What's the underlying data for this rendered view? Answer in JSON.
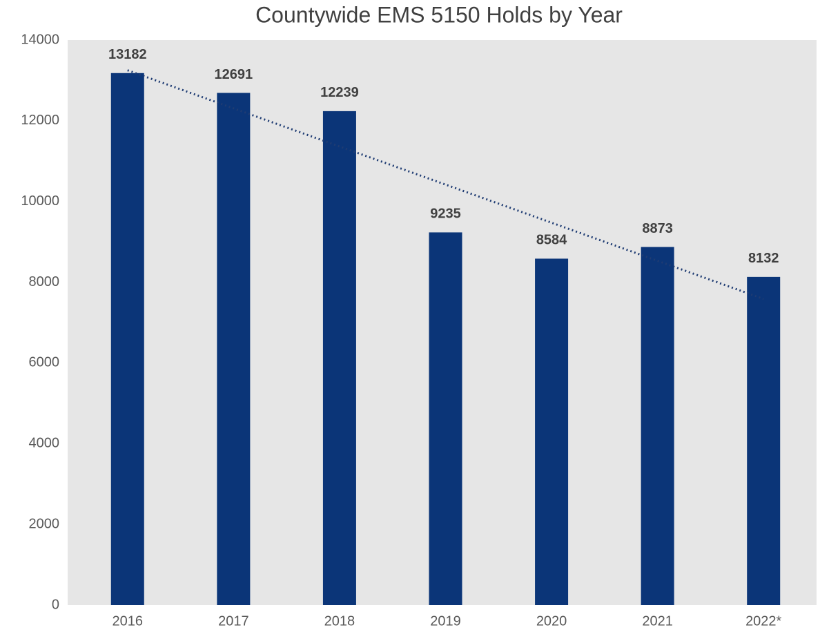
{
  "chart_data": {
    "type": "bar",
    "title": "Countywide EMS 5150 Holds by Year",
    "categories": [
      "2016",
      "2017",
      "2018",
      "2019",
      "2020",
      "2021",
      "2022*"
    ],
    "values": [
      13182,
      12691,
      12239,
      9235,
      8584,
      8873,
      8132
    ],
    "color": "#0b3578",
    "ylim": [
      0,
      14000
    ],
    "yticks": [
      0,
      2000,
      4000,
      6000,
      8000,
      10000,
      12000,
      14000
    ],
    "grid": false,
    "trendline": true
  }
}
